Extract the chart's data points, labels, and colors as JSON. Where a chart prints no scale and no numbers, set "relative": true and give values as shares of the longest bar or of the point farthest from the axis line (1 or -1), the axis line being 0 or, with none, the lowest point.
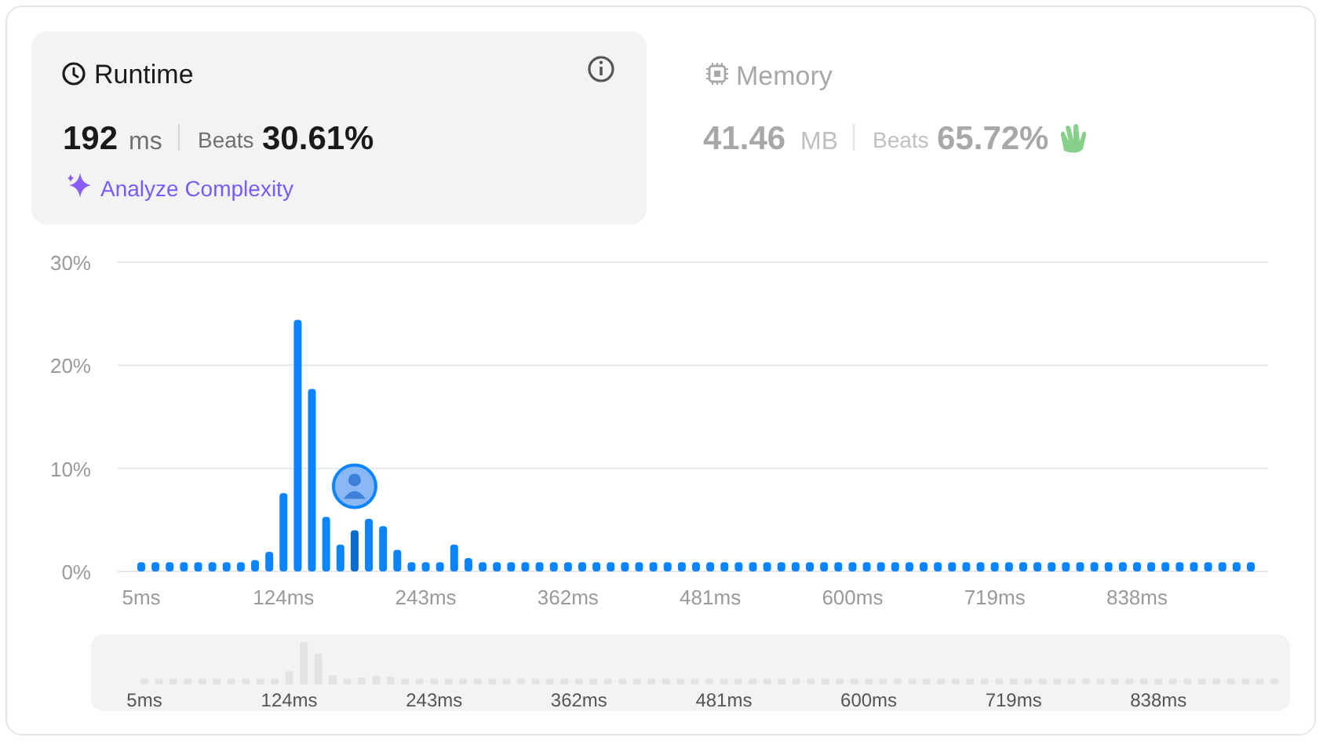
{
  "chart_data": [
    {
      "type": "bar",
      "categories": [
        "5ms",
        null,
        null,
        null,
        null,
        null,
        null,
        null,
        null,
        null,
        "124ms",
        null,
        null,
        null,
        null,
        null,
        null,
        null,
        null,
        null,
        "243ms",
        null,
        null,
        null,
        null,
        null,
        null,
        null,
        null,
        null,
        "362ms",
        null,
        null,
        null,
        null,
        null,
        null,
        null,
        null,
        null,
        "481ms",
        null,
        null,
        null,
        null,
        null,
        null,
        null,
        null,
        null,
        "600ms",
        null,
        null,
        null,
        null,
        null,
        null,
        null,
        null,
        null,
        "719ms",
        null,
        null,
        null,
        null,
        null,
        null,
        null,
        null,
        null,
        "838ms",
        null,
        null,
        null,
        null,
        null,
        null,
        null,
        null
      ],
      "values": [
        0.9,
        0.9,
        0.9,
        0.9,
        0.9,
        0.9,
        0.9,
        0.9,
        1.1,
        1.9,
        7.6,
        24.4,
        17.7,
        5.3,
        2.6,
        4.0,
        5.1,
        4.4,
        2.1,
        0.9,
        0.9,
        0.9,
        2.6,
        1.3,
        0.9,
        0.9,
        0.9,
        0.9,
        0.9,
        0.9,
        0.9,
        0.9,
        0.9,
        0.9,
        0.9,
        0.9,
        0.9,
        0.9,
        0.9,
        0.9,
        0.9,
        0.9,
        0.9,
        0.9,
        0.9,
        0.9,
        0.9,
        0.9,
        0.9,
        0.9,
        0.9,
        0.9,
        0.9,
        0.9,
        0.9,
        0.9,
        0.9,
        0.9,
        0.9,
        0.9,
        0.9,
        0.9,
        0.9,
        0.9,
        0.9,
        0.9,
        0.9,
        0.9,
        0.9,
        0.9,
        0.9,
        0.9,
        0.9,
        0.9,
        0.9,
        0.9,
        0.9,
        0.9,
        0.9
      ],
      "colors": [
        "#0a84ff",
        "#0a84ff",
        "#0a84ff",
        "#0a84ff",
        "#0a84ff",
        "#0a84ff",
        "#0a84ff",
        "#0a84ff",
        "#0a84ff",
        "#0a84ff",
        "#0a84ff",
        "#0a84ff",
        "#0a84ff",
        "#0a84ff",
        "#0a84ff",
        "#0a6bd0",
        "#0a84ff",
        "#0a84ff",
        "#0a84ff",
        "#0a84ff",
        "#0a84ff",
        "#0a84ff",
        "#0a84ff",
        "#0a84ff",
        "#0a84ff",
        "#0a84ff",
        "#0a84ff",
        "#0a84ff",
        "#0a84ff",
        "#0a84ff",
        "#0a84ff",
        "#0a84ff",
        "#0a84ff",
        "#0a84ff",
        "#0a84ff",
        "#0a84ff",
        "#0a84ff",
        "#0a84ff",
        "#0a84ff",
        "#0a84ff",
        "#0a84ff",
        "#0a84ff",
        "#0a84ff",
        "#0a84ff",
        "#0a84ff",
        "#0a84ff",
        "#0a84ff",
        "#0a84ff",
        "#0a84ff",
        "#0a84ff",
        "#0a84ff",
        "#0a84ff",
        "#0a84ff",
        "#0a84ff",
        "#0a84ff",
        "#0a84ff",
        "#0a84ff",
        "#0a84ff",
        "#0a84ff",
        "#0a84ff",
        "#0a84ff",
        "#0a84ff",
        "#0a84ff",
        "#0a84ff",
        "#0a84ff",
        "#0a84ff",
        "#0a84ff",
        "#0a84ff",
        "#0a84ff",
        "#0a84ff",
        "#0a84ff",
        "#0a84ff",
        "#0a84ff",
        "#0a84ff",
        "#0a84ff",
        "#0a84ff",
        "#0a84ff",
        "#0a84ff",
        "#0a84ff"
      ],
      "ylim": [
        0,
        30
      ],
      "yticks": [
        {
          "value": 0,
          "label": "0%"
        },
        {
          "value": 10,
          "label": "10%"
        },
        {
          "value": 20,
          "label": "20%"
        },
        {
          "value": 30,
          "label": "30%"
        }
      ],
      "grid": "y",
      "annotations": [
        "Runtime",
        "192",
        "ms",
        "Beats",
        "30.61%",
        "Analyze Complexity",
        "Memory",
        "41.46",
        "MB",
        "Beats",
        "65.72%"
      ]
    },
    {
      "type": "bar",
      "relative": true,
      "categories": [
        "5ms",
        null,
        null,
        null,
        null,
        null,
        null,
        null,
        null,
        null,
        "124ms",
        null,
        null,
        null,
        null,
        null,
        null,
        null,
        null,
        null,
        "243ms",
        null,
        null,
        null,
        null,
        null,
        null,
        null,
        null,
        null,
        "362ms",
        null,
        null,
        null,
        null,
        null,
        null,
        null,
        null,
        null,
        "481ms",
        null,
        null,
        null,
        null,
        null,
        null,
        null,
        null,
        null,
        "600ms",
        null,
        null,
        null,
        null,
        null,
        null,
        null,
        null,
        null,
        "719ms",
        null,
        null,
        null,
        null,
        null,
        null,
        null,
        null,
        null,
        "838ms",
        null,
        null,
        null,
        null,
        null,
        null,
        null,
        null
      ],
      "values": [
        0.14,
        0.14,
        0.14,
        0.14,
        0.14,
        0.14,
        0.14,
        0.14,
        0.14,
        0.14,
        0.31,
        1,
        0.73,
        0.22,
        0.14,
        0.16,
        0.21,
        0.18,
        0.14,
        0.14,
        0.14,
        0.14,
        0.14,
        0.14,
        0.14,
        0.14,
        0.14,
        0.14,
        0.14,
        0.14,
        0.14,
        0.14,
        0.14,
        0.14,
        0.14,
        0.14,
        0.14,
        0.14,
        0.14,
        0.14,
        0.14,
        0.14,
        0.14,
        0.14,
        0.14,
        0.14,
        0.14,
        0.14,
        0.14,
        0.14,
        0.14,
        0.14,
        0.14,
        0.14,
        0.14,
        0.14,
        0.14,
        0.14,
        0.14,
        0.14,
        0.14,
        0.14,
        0.14,
        0.14,
        0.14,
        0.14,
        0.14,
        0.14,
        0.14,
        0.14,
        0.14,
        0.14,
        0.14,
        0.14,
        0.14,
        0.14,
        0.14,
        0.14,
        0.14
      ],
      "color": "#e3e3e3"
    }
  ]
}
